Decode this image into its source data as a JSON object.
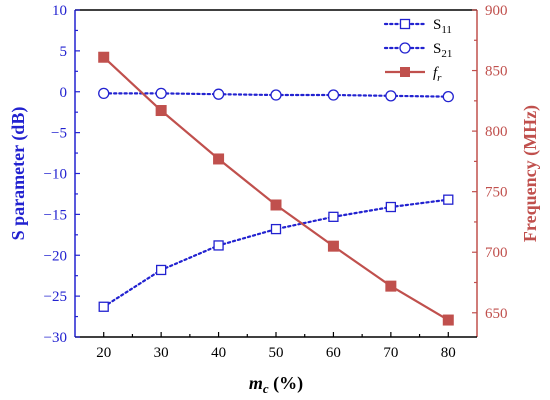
{
  "chart_data": {
    "type": "line",
    "x": [
      20,
      30,
      40,
      50,
      60,
      70,
      80
    ],
    "xlim": [
      15,
      85
    ],
    "xticks": [
      20,
      30,
      40,
      50,
      60,
      70,
      80
    ],
    "xlabel": {
      "main": "m",
      "sub": "c",
      "suffix": " (%)"
    },
    "left_axis": {
      "label": "S parameter (dB)",
      "ylim": [
        -30,
        10
      ],
      "ticks": [
        10,
        5,
        0,
        -5,
        -10,
        -15,
        -20,
        -25,
        -30
      ],
      "color": "#2222d0"
    },
    "right_axis": {
      "label": "Frequency (MHz)",
      "ylim": [
        630,
        900
      ],
      "ticks": [
        650,
        700,
        750,
        800,
        850,
        900
      ],
      "color": "#c0504d"
    },
    "series": [
      {
        "name": "S11",
        "name_main": "S",
        "name_sub": "11",
        "axis": "left",
        "marker": "square-open",
        "line": "dotted",
        "color": "#2222d0",
        "values": [
          -26.3,
          -21.8,
          -18.8,
          -16.8,
          -15.3,
          -14.1,
          -13.2
        ]
      },
      {
        "name": "S21",
        "name_main": "S",
        "name_sub": "21",
        "axis": "left",
        "marker": "circle-open",
        "line": "dotted",
        "color": "#2222d0",
        "values": [
          -0.2,
          -0.2,
          -0.3,
          -0.4,
          -0.4,
          -0.5,
          -0.6
        ]
      },
      {
        "name": "fr",
        "name_main": "f",
        "name_sub": "r",
        "axis": "right",
        "marker": "square-filled",
        "line": "solid",
        "color": "#c0504d",
        "values": [
          861,
          817,
          777,
          739,
          705,
          672,
          644
        ]
      }
    ],
    "legend_position": "top-right",
    "grid": false
  }
}
